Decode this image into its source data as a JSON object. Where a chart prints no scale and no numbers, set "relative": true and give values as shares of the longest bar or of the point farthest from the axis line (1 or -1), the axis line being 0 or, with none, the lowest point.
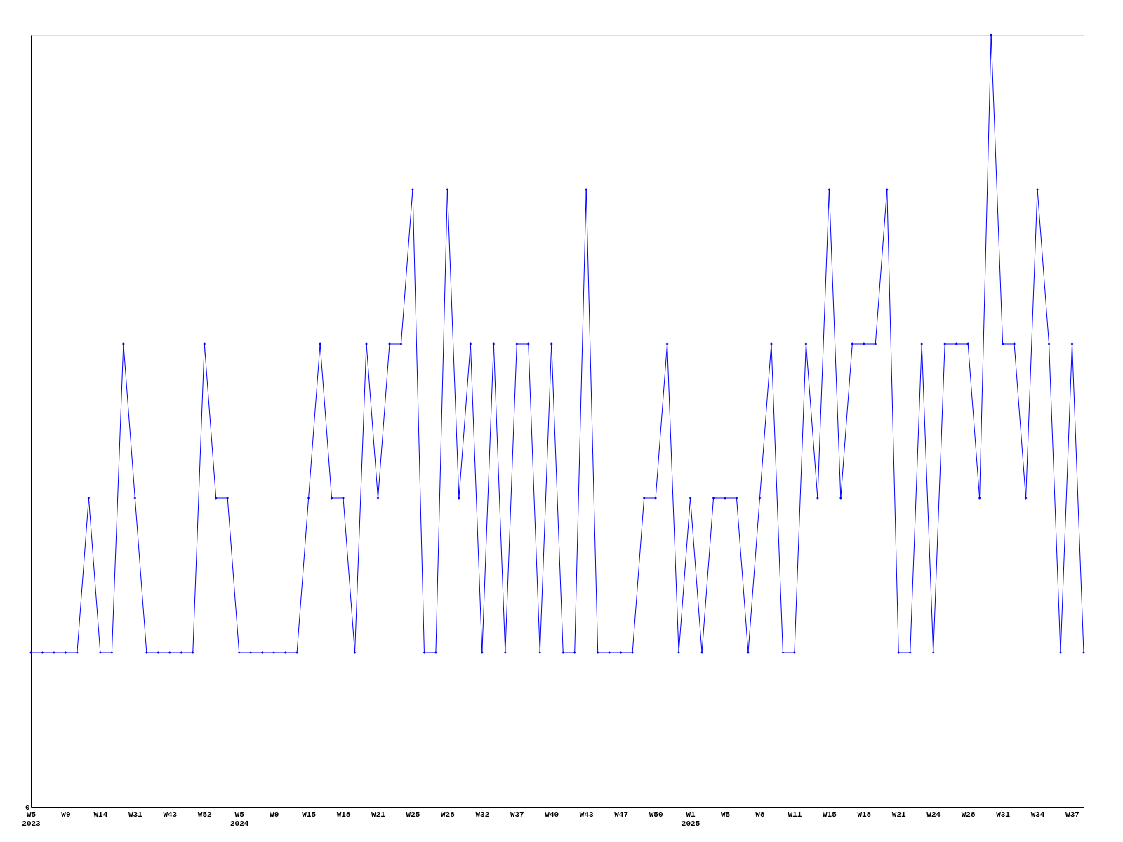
{
  "chart_data": {
    "type": "line",
    "relative": true,
    "marker": "diamond",
    "grid": false,
    "annotations": [
      "0"
    ],
    "categories": [
      "W5\n2023",
      null,
      null,
      "W9",
      null,
      null,
      "W14",
      null,
      null,
      "W31",
      null,
      null,
      "W43",
      null,
      null,
      "W52",
      null,
      null,
      "W5\n2024",
      null,
      null,
      "W9",
      null,
      null,
      "W15",
      null,
      null,
      "W18",
      null,
      null,
      "W21",
      null,
      null,
      "W25",
      null,
      null,
      "W28",
      null,
      null,
      "W32",
      null,
      null,
      "W37",
      null,
      null,
      "W40",
      null,
      null,
      "W43",
      null,
      null,
      "W47",
      null,
      null,
      "W50",
      null,
      null,
      "W1\n2025",
      null,
      null,
      "W5",
      null,
      null,
      "W8",
      null,
      null,
      "W11",
      null,
      null,
      "W15",
      null,
      null,
      "W18",
      null,
      null,
      "W21",
      null,
      null,
      "W24",
      null,
      null,
      "W28",
      null,
      null,
      "W31",
      null,
      null,
      "W34",
      null,
      null,
      "W37",
      null
    ],
    "series": [
      {
        "color": "#0000ff",
        "values": [
          0.2,
          0.2,
          0.2,
          0.2,
          0.2,
          0.4,
          0.2,
          0.2,
          0.6,
          0.4,
          0.2,
          0.2,
          0.2,
          0.2,
          0.2,
          0.6,
          0.4,
          0.4,
          0.2,
          0.2,
          0.2,
          0.2,
          0.2,
          0.2,
          0.4,
          0.6,
          0.4,
          0.4,
          0.2,
          0.6,
          0.4,
          0.6,
          0.6,
          0.8,
          0.2,
          0.2,
          0.8,
          0.4,
          0.6,
          0.2,
          0.6,
          0.2,
          0.6,
          0.6,
          0.2,
          0.6,
          0.2,
          0.2,
          0.8,
          0.2,
          0.2,
          0.2,
          0.2,
          0.4,
          0.4,
          0.6,
          0.2,
          0.4,
          0.2,
          0.4,
          0.4,
          0.4,
          0.2,
          0.4,
          0.6,
          0.2,
          0.2,
          0.6,
          0.4,
          0.8,
          0.4,
          0.6,
          0.6,
          0.6,
          0.8,
          0.2,
          0.2,
          0.6,
          0.2,
          0.6,
          0.6,
          0.6,
          0.4,
          1,
          0.6,
          0.6,
          0.4,
          0.8,
          0.6,
          0.2,
          0.6,
          0.2
        ]
      }
    ]
  }
}
